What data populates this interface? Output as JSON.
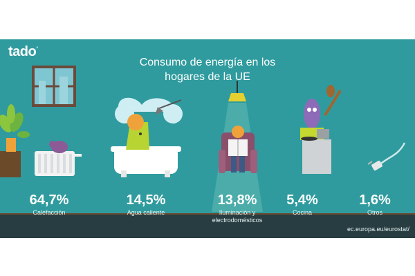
{
  "brand": {
    "logo_text": "tado",
    "logo_mark": "°"
  },
  "headline": {
    "line1": "Consumo de energía en los",
    "line2": "hogares de la UE"
  },
  "stats": [
    {
      "value": "64,7%",
      "label_line1": "Calefacción",
      "label_line2": ""
    },
    {
      "value": "14,5%",
      "label_line1": "Agua caliente",
      "label_line2": ""
    },
    {
      "value": "13,8%",
      "label_line1": "Iluminación y",
      "label_line2": "electrodomésticos"
    },
    {
      "value": "5,4%",
      "label_line1": "Cocina",
      "label_line2": ""
    },
    {
      "value": "1,6%",
      "label_line1": "Otros",
      "label_line2": ""
    }
  ],
  "source": "ec.europa.eu/eurostat/",
  "colors": {
    "background": "#2f9b9e",
    "floor": "#283d41",
    "text": "#ffffff"
  },
  "illustrations": [
    "plant-icon",
    "window-icon",
    "radiator-icon",
    "bathtub-icon",
    "ceiling-lamp-icon",
    "armchair-reader-icon",
    "cook-character-icon",
    "plug-icon"
  ]
}
